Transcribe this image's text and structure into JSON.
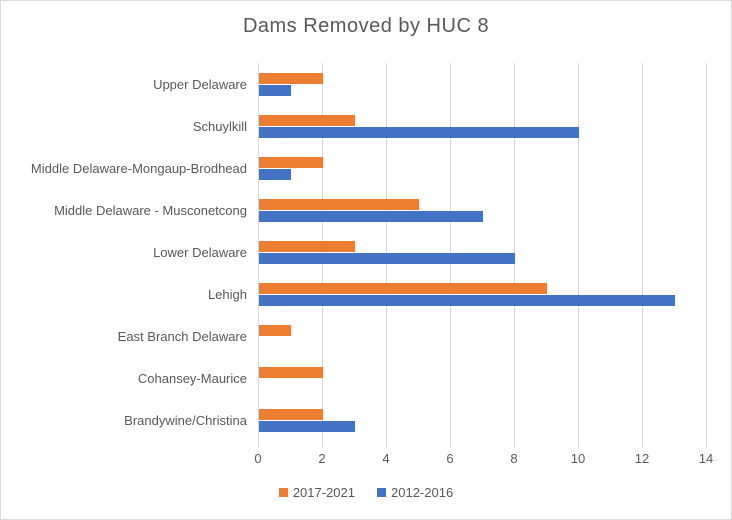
{
  "chart_data": {
    "type": "bar",
    "orientation": "horizontal",
    "title": "Dams Removed by HUC 8",
    "categories": [
      "Upper Delaware",
      "Schuylkill",
      "Middle Delaware-Mongaup-Brodhead",
      "Middle Delaware - Musconetcong",
      "Lower Delaware",
      "Lehigh",
      "East Branch Delaware",
      "Cohansey-Maurice",
      "Brandywine/Christina"
    ],
    "series": [
      {
        "name": "2017-2021",
        "color": "#ED7D31",
        "values": [
          2,
          3,
          2,
          5,
          3,
          9,
          1,
          2,
          2
        ]
      },
      {
        "name": "2012-2016",
        "color": "#4472C4",
        "values": [
          1,
          10,
          1,
          7,
          8,
          13,
          0,
          0,
          3
        ]
      }
    ],
    "xlim": [
      0,
      14
    ],
    "xticks": [
      0,
      2,
      4,
      6,
      8,
      10,
      12,
      14
    ],
    "xlabel": "",
    "ylabel": "",
    "grid": true,
    "legend_position": "bottom"
  },
  "colors": {
    "background": "#FFFFFF",
    "border": "#D9D9D9",
    "gridline": "#D9D9D9",
    "text": "#595959"
  }
}
